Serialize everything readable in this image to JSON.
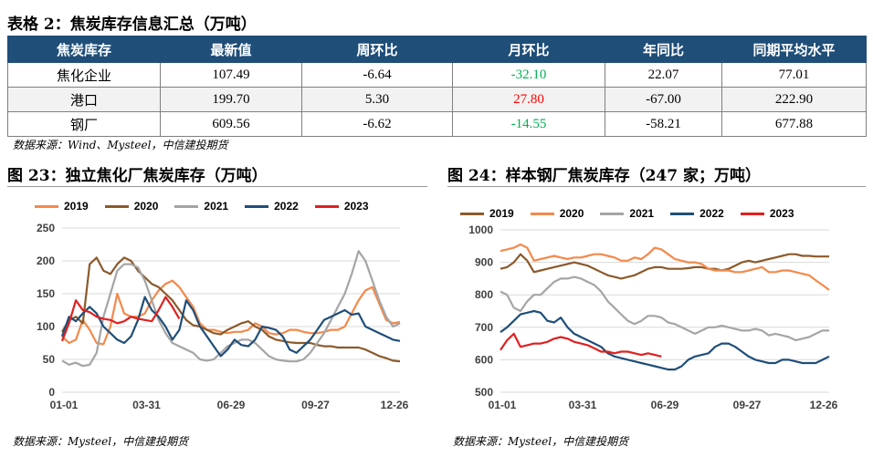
{
  "table": {
    "title": "表格 2：焦炭库存信息汇总（万吨）",
    "headers": [
      "焦炭库存",
      "最新值",
      "周环比",
      "月环比",
      "年同比",
      "同期平均水平"
    ],
    "rows": [
      {
        "name": "焦化企业",
        "latest": "107.49",
        "wow": "-6.64",
        "mom": "-32.10",
        "mom_color": "#00b050",
        "yoy": "22.07",
        "avg": "77.01"
      },
      {
        "name": "港口",
        "latest": "199.70",
        "wow": "5.30",
        "mom": "27.80",
        "mom_color": "#ff0000",
        "yoy": "-67.00",
        "avg": "222.90"
      },
      {
        "name": "钢厂",
        "latest": "609.56",
        "wow": "-6.62",
        "mom": "-14.55",
        "mom_color": "#00b050",
        "yoy": "-58.21",
        "avg": "677.88"
      }
    ],
    "source": "数据来源：Wind、Mysteel，中信建投期货"
  },
  "figures": {
    "left": {
      "title": "图 23：独立焦化厂焦炭库存（万吨）",
      "source": "数据来源：Mysteel，中信建投期货"
    },
    "right": {
      "title": "图 24：样本钢厂焦炭库存（247 家；万吨）",
      "source": "数据来源：Mysteel，中信建投期货"
    }
  },
  "chart_data": [
    {
      "type": "line",
      "title": "独立焦化厂焦炭库存（万吨）",
      "x_ticks": [
        "01-01",
        "03-31",
        "06-29",
        "09-27",
        "12-26"
      ],
      "ylim": [
        0,
        250
      ],
      "y_ticks": [
        0,
        50,
        100,
        150,
        200,
        250
      ],
      "grid": true,
      "legend": "top",
      "series": [
        {
          "name": "2019",
          "color": "#f4894b",
          "values": [
            85,
            75,
            80,
            110,
            95,
            75,
            73,
            100,
            150,
            120,
            115,
            115,
            120,
            140,
            155,
            165,
            170,
            160,
            145,
            130,
            105,
            95,
            95,
            92,
            90,
            92,
            92,
            95,
            105,
            100,
            90,
            88,
            90,
            95,
            95,
            92,
            90,
            90,
            92,
            95,
            95,
            100,
            120,
            140,
            155,
            160,
            135,
            110,
            105,
            107
          ]
        },
        {
          "name": "2020",
          "color": "#8b5a2b",
          "values": [
            92,
            110,
            115,
            105,
            195,
            205,
            185,
            180,
            195,
            205,
            200,
            185,
            175,
            165,
            160,
            150,
            140,
            125,
            110,
            102,
            100,
            95,
            90,
            88,
            95,
            100,
            105,
            108,
            100,
            95,
            85,
            80,
            78,
            76,
            75,
            75,
            75,
            72,
            70,
            70,
            68,
            68,
            68,
            68,
            65,
            60,
            55,
            52,
            48,
            47
          ]
        },
        {
          "name": "2021",
          "color": "#a5a5a5",
          "values": [
            48,
            42,
            45,
            40,
            42,
            60,
            115,
            150,
            185,
            195,
            195,
            190,
            170,
            140,
            110,
            90,
            75,
            70,
            65,
            60,
            50,
            48,
            50,
            60,
            70,
            75,
            80,
            80,
            75,
            65,
            55,
            50,
            48,
            47,
            47,
            50,
            60,
            75,
            90,
            110,
            130,
            150,
            180,
            215,
            200,
            170,
            140,
            115,
            100,
            105
          ]
        },
        {
          "name": "2022",
          "color": "#1f4e79",
          "values": [
            85,
            115,
            108,
            120,
            130,
            120,
            100,
            90,
            80,
            75,
            85,
            110,
            145,
            125,
            115,
            100,
            80,
            95,
            140,
            125,
            100,
            85,
            70,
            55,
            65,
            80,
            72,
            70,
            80,
            100,
            98,
            95,
            85,
            65,
            60,
            70,
            80,
            95,
            110,
            115,
            120,
            125,
            118,
            120,
            100,
            95,
            90,
            85,
            80,
            78
          ]
        },
        {
          "name": "2023",
          "color": "#e02020",
          "values": [
            78,
            105,
            140,
            125,
            122,
            115,
            112,
            110,
            105,
            108,
            115,
            112,
            110,
            108,
            125,
            145,
            130,
            112
          ]
        }
      ]
    },
    {
      "type": "line",
      "title": "样本钢厂焦炭库存（247家；万吨）",
      "x_ticks": [
        "01-01",
        "03-31",
        "06-29",
        "09-27",
        "12-26"
      ],
      "ylim": [
        500,
        1000
      ],
      "y_ticks": [
        500,
        600,
        700,
        800,
        900,
        1000
      ],
      "grid": true,
      "legend": "top",
      "series": [
        {
          "name": "2019",
          "color": "#8b5a2b",
          "values": [
            880,
            885,
            900,
            925,
            905,
            870,
            875,
            880,
            885,
            890,
            895,
            900,
            895,
            890,
            880,
            870,
            860,
            855,
            850,
            855,
            860,
            870,
            880,
            885,
            885,
            880,
            880,
            880,
            882,
            885,
            885,
            880,
            880,
            875,
            880,
            890,
            900,
            905,
            900,
            905,
            910,
            915,
            920,
            925,
            925,
            920,
            920,
            918,
            918,
            918
          ]
        },
        {
          "name": "2020",
          "color": "#f4894b",
          "values": [
            935,
            940,
            945,
            955,
            945,
            905,
            910,
            915,
            920,
            915,
            910,
            915,
            915,
            920,
            925,
            925,
            920,
            915,
            905,
            905,
            915,
            910,
            925,
            945,
            940,
            925,
            910,
            905,
            900,
            900,
            895,
            880,
            875,
            875,
            875,
            870,
            870,
            875,
            880,
            885,
            870,
            870,
            875,
            875,
            870,
            865,
            860,
            845,
            830,
            815
          ]
        },
        {
          "name": "2021",
          "color": "#a5a5a5",
          "values": [
            810,
            800,
            760,
            750,
            780,
            800,
            800,
            820,
            840,
            850,
            850,
            855,
            850,
            840,
            830,
            810,
            780,
            760,
            740,
            720,
            710,
            720,
            735,
            735,
            730,
            715,
            710,
            700,
            690,
            680,
            690,
            700,
            700,
            705,
            700,
            695,
            690,
            690,
            695,
            690,
            675,
            680,
            675,
            670,
            660,
            665,
            670,
            680,
            690,
            690
          ]
        },
        {
          "name": "2022",
          "color": "#1f4e79",
          "values": [
            685,
            700,
            720,
            740,
            745,
            750,
            745,
            720,
            715,
            730,
            700,
            680,
            670,
            660,
            650,
            640,
            620,
            610,
            605,
            600,
            595,
            590,
            585,
            580,
            575,
            570,
            570,
            580,
            600,
            610,
            615,
            620,
            640,
            650,
            650,
            640,
            625,
            610,
            600,
            595,
            590,
            590,
            600,
            600,
            595,
            590,
            590,
            590,
            600,
            610
          ]
        },
        {
          "name": "2023",
          "color": "#e02020",
          "values": [
            630,
            660,
            680,
            640,
            645,
            650,
            650,
            655,
            665,
            670,
            665,
            655,
            650,
            645,
            635,
            625,
            625,
            620,
            625,
            625,
            620,
            615,
            620,
            615,
            610
          ]
        }
      ]
    }
  ]
}
